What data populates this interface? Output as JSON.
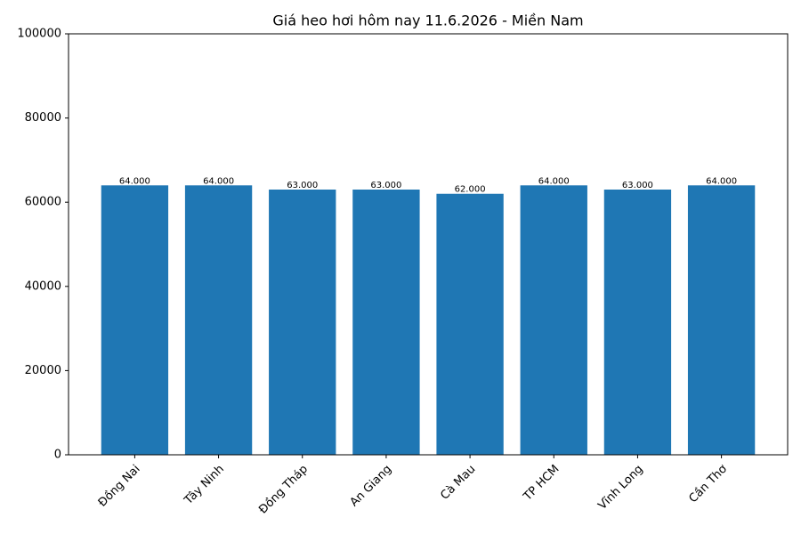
{
  "chart_data": {
    "type": "bar",
    "title": "Giá heo hơi hôm nay 11.6.2026 - Miền Nam",
    "categories": [
      "Đồng Nai",
      "Tây Ninh",
      "Đồng Tháp",
      "An Giang",
      "Cà Mau",
      "TP HCM",
      "Vĩnh Long",
      "Cần Thơ"
    ],
    "values": [
      64000,
      64000,
      63000,
      63000,
      62000,
      64000,
      63000,
      64000
    ],
    "value_labels": [
      "64.000",
      "64.000",
      "63.000",
      "63.000",
      "62.000",
      "64.000",
      "63.000",
      "64.000"
    ],
    "color": "#1f77b4",
    "ylim": [
      0,
      100000
    ],
    "yticks": [
      0,
      20000,
      40000,
      60000,
      80000,
      100000
    ],
    "grid": false
  }
}
